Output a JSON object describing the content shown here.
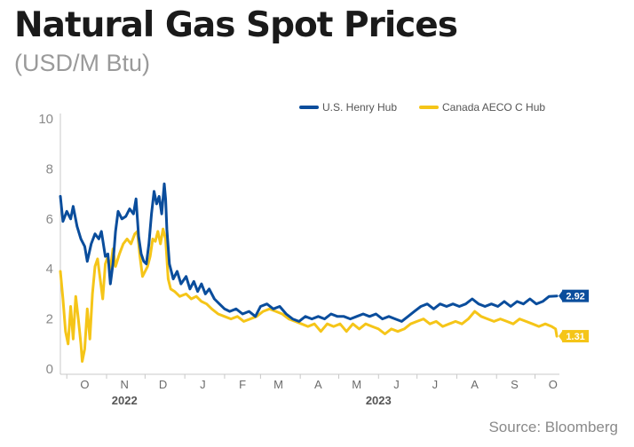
{
  "header": {
    "title": "Natural Gas Spot Prices",
    "subtitle": "(USD/M Btu)"
  },
  "footer": {
    "source": "Source: Bloomberg"
  },
  "chart_data": {
    "type": "line",
    "title": "Natural Gas Spot Prices",
    "subtitle": "(USD/M Btu)",
    "xlabel": "",
    "ylabel": "",
    "ylim": [
      0,
      10
    ],
    "yticks": [
      "0",
      "2",
      "4",
      "6",
      "8",
      "10"
    ],
    "xlim": [
      "2022-09-26",
      "2023-10-20"
    ],
    "grid": false,
    "legend_position": "top-right",
    "month_ticks": [
      {
        "label": "O",
        "date": "2022-10-15"
      },
      {
        "label": "N",
        "date": "2022-11-15"
      },
      {
        "label": "D",
        "date": "2022-12-15"
      },
      {
        "label": "J",
        "date": "2023-01-15"
      },
      {
        "label": "F",
        "date": "2023-02-15"
      },
      {
        "label": "M",
        "date": "2023-03-15"
      },
      {
        "label": "A",
        "date": "2023-04-15"
      },
      {
        "label": "M",
        "date": "2023-05-15"
      },
      {
        "label": "J",
        "date": "2023-06-15"
      },
      {
        "label": "J",
        "date": "2023-07-15"
      },
      {
        "label": "A",
        "date": "2023-08-15"
      },
      {
        "label": "S",
        "date": "2023-09-15"
      },
      {
        "label": "O",
        "date": "2023-10-15"
      }
    ],
    "year_labels": [
      {
        "label": "2022",
        "date": "2022-11-15"
      },
      {
        "label": "2023",
        "date": "2023-06-01"
      }
    ],
    "series": [
      {
        "name": "U.S. Henry Hub",
        "color": "#0a4d9c",
        "end_label": "2.92",
        "points": [
          [
            "2022-09-26",
            6.9
          ],
          [
            "2022-09-28",
            5.9
          ],
          [
            "2022-10-01",
            6.3
          ],
          [
            "2022-10-04",
            6.0
          ],
          [
            "2022-10-06",
            6.5
          ],
          [
            "2022-10-09",
            5.7
          ],
          [
            "2022-10-12",
            5.2
          ],
          [
            "2022-10-15",
            4.9
          ],
          [
            "2022-10-17",
            4.3
          ],
          [
            "2022-10-20",
            5.0
          ],
          [
            "2022-10-23",
            5.4
          ],
          [
            "2022-10-26",
            5.2
          ],
          [
            "2022-10-28",
            5.5
          ],
          [
            "2022-10-31",
            4.5
          ],
          [
            "2022-11-02",
            4.6
          ],
          [
            "2022-11-04",
            3.4
          ],
          [
            "2022-11-06",
            4.2
          ],
          [
            "2022-11-08",
            5.5
          ],
          [
            "2022-11-10",
            6.3
          ],
          [
            "2022-11-13",
            6.0
          ],
          [
            "2022-11-16",
            6.1
          ],
          [
            "2022-11-19",
            6.4
          ],
          [
            "2022-11-22",
            6.2
          ],
          [
            "2022-11-24",
            6.8
          ],
          [
            "2022-11-26",
            5.3
          ],
          [
            "2022-11-28",
            4.6
          ],
          [
            "2022-11-30",
            4.3
          ],
          [
            "2022-12-02",
            4.2
          ],
          [
            "2022-12-04",
            5.0
          ],
          [
            "2022-12-06",
            6.2
          ],
          [
            "2022-12-08",
            7.1
          ],
          [
            "2022-12-10",
            6.6
          ],
          [
            "2022-12-12",
            6.9
          ],
          [
            "2022-12-14",
            6.2
          ],
          [
            "2022-12-16",
            7.4
          ],
          [
            "2022-12-17",
            6.8
          ],
          [
            "2022-12-18",
            5.6
          ],
          [
            "2022-12-20",
            4.2
          ],
          [
            "2022-12-23",
            3.6
          ],
          [
            "2022-12-26",
            3.9
          ],
          [
            "2022-12-29",
            3.4
          ],
          [
            "2023-01-02",
            3.7
          ],
          [
            "2023-01-05",
            3.2
          ],
          [
            "2023-01-08",
            3.5
          ],
          [
            "2023-01-11",
            3.1
          ],
          [
            "2023-01-14",
            3.4
          ],
          [
            "2023-01-17",
            3.0
          ],
          [
            "2023-01-20",
            3.2
          ],
          [
            "2023-01-24",
            2.8
          ],
          [
            "2023-01-28",
            2.6
          ],
          [
            "2023-02-01",
            2.4
          ],
          [
            "2023-02-05",
            2.3
          ],
          [
            "2023-02-10",
            2.4
          ],
          [
            "2023-02-15",
            2.2
          ],
          [
            "2023-02-20",
            2.3
          ],
          [
            "2023-02-25",
            2.1
          ],
          [
            "2023-03-01",
            2.5
          ],
          [
            "2023-03-06",
            2.6
          ],
          [
            "2023-03-11",
            2.4
          ],
          [
            "2023-03-16",
            2.5
          ],
          [
            "2023-03-21",
            2.2
          ],
          [
            "2023-03-26",
            2.0
          ],
          [
            "2023-03-31",
            1.9
          ],
          [
            "2023-04-05",
            2.1
          ],
          [
            "2023-04-10",
            2.0
          ],
          [
            "2023-04-15",
            2.1
          ],
          [
            "2023-04-20",
            2.0
          ],
          [
            "2023-04-25",
            2.2
          ],
          [
            "2023-04-30",
            2.1
          ],
          [
            "2023-05-05",
            2.1
          ],
          [
            "2023-05-10",
            2.0
          ],
          [
            "2023-05-15",
            2.1
          ],
          [
            "2023-05-20",
            2.2
          ],
          [
            "2023-05-25",
            2.1
          ],
          [
            "2023-05-30",
            2.2
          ],
          [
            "2023-06-04",
            2.0
          ],
          [
            "2023-06-09",
            2.1
          ],
          [
            "2023-06-14",
            2.0
          ],
          [
            "2023-06-19",
            1.9
          ],
          [
            "2023-06-24",
            2.1
          ],
          [
            "2023-06-29",
            2.3
          ],
          [
            "2023-07-04",
            2.5
          ],
          [
            "2023-07-09",
            2.6
          ],
          [
            "2023-07-14",
            2.4
          ],
          [
            "2023-07-19",
            2.6
          ],
          [
            "2023-07-24",
            2.5
          ],
          [
            "2023-07-29",
            2.6
          ],
          [
            "2023-08-03",
            2.5
          ],
          [
            "2023-08-08",
            2.6
          ],
          [
            "2023-08-13",
            2.8
          ],
          [
            "2023-08-18",
            2.6
          ],
          [
            "2023-08-23",
            2.5
          ],
          [
            "2023-08-28",
            2.6
          ],
          [
            "2023-09-02",
            2.5
          ],
          [
            "2023-09-07",
            2.7
          ],
          [
            "2023-09-12",
            2.5
          ],
          [
            "2023-09-17",
            2.7
          ],
          [
            "2023-09-22",
            2.6
          ],
          [
            "2023-09-27",
            2.8
          ],
          [
            "2023-10-02",
            2.6
          ],
          [
            "2023-10-07",
            2.7
          ],
          [
            "2023-10-12",
            2.9
          ],
          [
            "2023-10-18",
            2.92
          ]
        ]
      },
      {
        "name": "Canada AECO C Hub",
        "color": "#f5c518",
        "end_label": "1.31",
        "points": [
          [
            "2022-09-26",
            3.9
          ],
          [
            "2022-09-28",
            2.8
          ],
          [
            "2022-09-30",
            1.5
          ],
          [
            "2022-10-02",
            1.0
          ],
          [
            "2022-10-04",
            2.5
          ],
          [
            "2022-10-06",
            1.2
          ],
          [
            "2022-10-08",
            2.9
          ],
          [
            "2022-10-10",
            2.0
          ],
          [
            "2022-10-12",
            1.0
          ],
          [
            "2022-10-13",
            0.3
          ],
          [
            "2022-10-15",
            0.8
          ],
          [
            "2022-10-17",
            2.4
          ],
          [
            "2022-10-19",
            1.2
          ],
          [
            "2022-10-21",
            3.0
          ],
          [
            "2022-10-23",
            4.1
          ],
          [
            "2022-10-25",
            4.4
          ],
          [
            "2022-10-27",
            3.6
          ],
          [
            "2022-10-29",
            2.8
          ],
          [
            "2022-10-31",
            4.2
          ],
          [
            "2022-11-02",
            4.5
          ],
          [
            "2022-11-04",
            4.0
          ],
          [
            "2022-11-06",
            4.8
          ],
          [
            "2022-11-08",
            4.1
          ],
          [
            "2022-11-11",
            4.6
          ],
          [
            "2022-11-14",
            5.0
          ],
          [
            "2022-11-17",
            5.2
          ],
          [
            "2022-11-20",
            5.0
          ],
          [
            "2022-11-23",
            5.4
          ],
          [
            "2022-11-25",
            5.5
          ],
          [
            "2022-11-27",
            4.5
          ],
          [
            "2022-11-29",
            3.7
          ],
          [
            "2022-12-01",
            3.9
          ],
          [
            "2022-12-03",
            4.1
          ],
          [
            "2022-12-05",
            4.5
          ],
          [
            "2022-12-07",
            5.2
          ],
          [
            "2022-12-09",
            5.1
          ],
          [
            "2022-12-11",
            5.5
          ],
          [
            "2022-12-13",
            5.0
          ],
          [
            "2022-12-15",
            5.6
          ],
          [
            "2022-12-17",
            5.2
          ],
          [
            "2022-12-19",
            3.6
          ],
          [
            "2022-12-21",
            3.2
          ],
          [
            "2022-12-24",
            3.1
          ],
          [
            "2022-12-28",
            2.9
          ],
          [
            "2023-01-02",
            3.0
          ],
          [
            "2023-01-06",
            2.8
          ],
          [
            "2023-01-10",
            2.9
          ],
          [
            "2023-01-14",
            2.7
          ],
          [
            "2023-01-18",
            2.6
          ],
          [
            "2023-01-22",
            2.4
          ],
          [
            "2023-01-27",
            2.2
          ],
          [
            "2023-02-01",
            2.1
          ],
          [
            "2023-02-06",
            2.0
          ],
          [
            "2023-02-11",
            2.1
          ],
          [
            "2023-02-16",
            1.9
          ],
          [
            "2023-02-21",
            2.0
          ],
          [
            "2023-02-26",
            2.1
          ],
          [
            "2023-03-03",
            2.3
          ],
          [
            "2023-03-08",
            2.4
          ],
          [
            "2023-03-13",
            2.3
          ],
          [
            "2023-03-18",
            2.2
          ],
          [
            "2023-03-23",
            2.0
          ],
          [
            "2023-03-28",
            1.9
          ],
          [
            "2023-04-02",
            1.8
          ],
          [
            "2023-04-07",
            1.7
          ],
          [
            "2023-04-12",
            1.8
          ],
          [
            "2023-04-17",
            1.5
          ],
          [
            "2023-04-22",
            1.8
          ],
          [
            "2023-04-27",
            1.7
          ],
          [
            "2023-05-02",
            1.8
          ],
          [
            "2023-05-07",
            1.5
          ],
          [
            "2023-05-12",
            1.8
          ],
          [
            "2023-05-17",
            1.6
          ],
          [
            "2023-05-22",
            1.8
          ],
          [
            "2023-05-27",
            1.7
          ],
          [
            "2023-06-01",
            1.6
          ],
          [
            "2023-06-06",
            1.4
          ],
          [
            "2023-06-11",
            1.6
          ],
          [
            "2023-06-16",
            1.5
          ],
          [
            "2023-06-21",
            1.6
          ],
          [
            "2023-06-26",
            1.8
          ],
          [
            "2023-07-01",
            1.9
          ],
          [
            "2023-07-06",
            2.0
          ],
          [
            "2023-07-11",
            1.8
          ],
          [
            "2023-07-16",
            1.9
          ],
          [
            "2023-07-21",
            1.7
          ],
          [
            "2023-07-26",
            1.8
          ],
          [
            "2023-07-31",
            1.9
          ],
          [
            "2023-08-05",
            1.8
          ],
          [
            "2023-08-10",
            2.0
          ],
          [
            "2023-08-15",
            2.3
          ],
          [
            "2023-08-20",
            2.1
          ],
          [
            "2023-08-25",
            2.0
          ],
          [
            "2023-08-30",
            1.9
          ],
          [
            "2023-09-04",
            2.0
          ],
          [
            "2023-09-09",
            1.9
          ],
          [
            "2023-09-14",
            1.8
          ],
          [
            "2023-09-19",
            2.0
          ],
          [
            "2023-09-24",
            1.9
          ],
          [
            "2023-09-29",
            1.8
          ],
          [
            "2023-10-04",
            1.7
          ],
          [
            "2023-10-09",
            1.8
          ],
          [
            "2023-10-14",
            1.7
          ],
          [
            "2023-10-17",
            1.6
          ],
          [
            "2023-10-18",
            1.31
          ]
        ]
      }
    ]
  }
}
